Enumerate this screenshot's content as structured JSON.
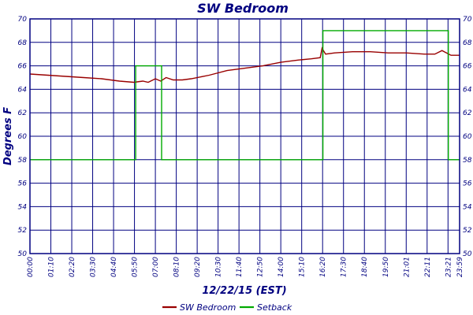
{
  "chart_data": {
    "type": "line",
    "title": "SW Bedroom",
    "xlabel": "12/22/15 (EST)",
    "ylabel": "Degrees F",
    "ylim": [
      50,
      70
    ],
    "y_ticks": [
      "50",
      "52",
      "54",
      "56",
      "58",
      "60",
      "62",
      "64",
      "66",
      "68",
      "70"
    ],
    "x_ticks": [
      "00:00",
      "01:10",
      "02:20",
      "03:30",
      "04:40",
      "05:50",
      "07:00",
      "08:10",
      "09:20",
      "10:30",
      "11:40",
      "12:50",
      "14:00",
      "15:10",
      "16:20",
      "17:30",
      "18:40",
      "19:50",
      "21:01",
      "22:11",
      "23:21",
      "23:59"
    ],
    "x_range_hours": [
      0,
      23.98
    ],
    "grid": true,
    "legend_position": "bottom",
    "colors": {
      "frame": "#000080",
      "grid": "#000080",
      "bedroom": "#990000",
      "setback": "#00aa00"
    },
    "series": [
      {
        "name": "SW Bedroom",
        "x": [
          0,
          1,
          2,
          3,
          4,
          5,
          5.8,
          6.3,
          6.6,
          7.0,
          7.3,
          7.6,
          8.0,
          8.5,
          9.0,
          10.0,
          11.0,
          12.0,
          13.0,
          14.0,
          15.0,
          15.7,
          16.2,
          16.3,
          16.5,
          17.0,
          18.0,
          19.0,
          20.0,
          21.0,
          22.0,
          22.6,
          23.0,
          23.5,
          23.98
        ],
        "values": [
          65.3,
          65.2,
          65.1,
          65.0,
          64.9,
          64.7,
          64.6,
          64.7,
          64.6,
          64.9,
          64.7,
          65.0,
          64.8,
          64.8,
          64.9,
          65.2,
          65.6,
          65.8,
          66.0,
          66.3,
          66.5,
          66.6,
          66.7,
          67.5,
          67.0,
          67.1,
          67.2,
          67.2,
          67.1,
          67.1,
          67.0,
          67.0,
          67.3,
          66.9,
          66.9
        ]
      },
      {
        "name": "Setback",
        "x": [
          0,
          5.9,
          5.9,
          7.35,
          7.35,
          16.35,
          16.35,
          23.35,
          23.35,
          23.98
        ],
        "values": [
          58,
          58,
          66,
          66,
          58,
          58,
          69,
          69,
          58,
          58
        ]
      }
    ]
  }
}
